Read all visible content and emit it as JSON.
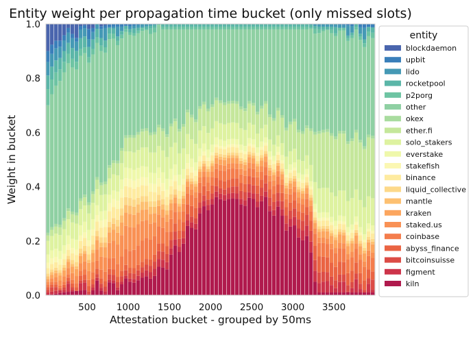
{
  "chart_data": {
    "type": "bar",
    "stacked": true,
    "normalized": true,
    "title": "Entity weight per propagation time bucket (only missed slots)",
    "xlabel": "Attestation bucket - grouped by 50ms",
    "ylabel": "Weight in bucket",
    "ylim": [
      0,
      1
    ],
    "y_ticks": [
      "0.0",
      "0.2",
      "0.4",
      "0.6",
      "0.8",
      "1.0"
    ],
    "x_ticks": [
      "500",
      "1000",
      "1500",
      "2000",
      "2500",
      "3000",
      "3500"
    ],
    "x_range": [
      0,
      4000
    ],
    "bucket_ms": 50,
    "grid": false,
    "legend": {
      "title": "entity",
      "position": "right",
      "entries": [
        {
          "name": "blockdaemon",
          "color": "#4a65ad"
        },
        {
          "name": "upbit",
          "color": "#3a7fba"
        },
        {
          "name": "lido",
          "color": "#4599b5"
        },
        {
          "name": "rocketpool",
          "color": "#5bb6a8"
        },
        {
          "name": "p2porg",
          "color": "#6ec4a3"
        },
        {
          "name": "other",
          "color": "#8fd0a3"
        },
        {
          "name": "okex",
          "color": "#a9dc9f"
        },
        {
          "name": "ether.fi",
          "color": "#c5e79b"
        },
        {
          "name": "solo_stakers",
          "color": "#def2a0"
        },
        {
          "name": "everstake",
          "color": "#eff8ab"
        },
        {
          "name": "stakefish",
          "color": "#fbf7b3"
        },
        {
          "name": "binance",
          "color": "#feeba0"
        },
        {
          "name": "liquid_collective",
          "color": "#fdd98a"
        },
        {
          "name": "mantle",
          "color": "#fdc071"
        },
        {
          "name": "kraken",
          "color": "#fca65f"
        },
        {
          "name": "staked.us",
          "color": "#f99155"
        },
        {
          "name": "coinbase",
          "color": "#f47d4c"
        },
        {
          "name": "abyss_finance",
          "color": "#ea6443"
        },
        {
          "name": "bitcoinsuisse",
          "color": "#dc4c46"
        },
        {
          "name": "figment",
          "color": "#cd344a"
        },
        {
          "name": "kiln",
          "color": "#b01a4d"
        }
      ]
    },
    "anchors": {
      "x": [
        25,
        200,
        500,
        800,
        1000,
        1200,
        1400,
        1600,
        1800,
        2000,
        2200,
        2400,
        2600,
        2800,
        3000,
        3200,
        3300,
        3500,
        3800,
        3975
      ],
      "cumulative_boundaries": {
        "kiln": [
          0.0,
          0.01,
          0.02,
          0.03,
          0.05,
          0.06,
          0.09,
          0.17,
          0.26,
          0.34,
          0.36,
          0.34,
          0.35,
          0.31,
          0.24,
          0.2,
          0.01,
          0.01,
          0.01,
          0.01
        ],
        "figment": [
          0.01,
          0.02,
          0.03,
          0.04,
          0.06,
          0.08,
          0.12,
          0.19,
          0.28,
          0.36,
          0.38,
          0.36,
          0.37,
          0.33,
          0.27,
          0.24,
          0.05,
          0.04,
          0.03,
          0.02
        ],
        "bitcoinsuisse": [
          0.02,
          0.03,
          0.04,
          0.06,
          0.08,
          0.1,
          0.15,
          0.22,
          0.3,
          0.38,
          0.4,
          0.39,
          0.4,
          0.36,
          0.3,
          0.28,
          0.09,
          0.07,
          0.05,
          0.04
        ],
        "abyss_finance": [
          0.03,
          0.04,
          0.06,
          0.08,
          0.1,
          0.12,
          0.18,
          0.25,
          0.34,
          0.41,
          0.43,
          0.42,
          0.43,
          0.39,
          0.33,
          0.31,
          0.15,
          0.12,
          0.09,
          0.07
        ],
        "coinbase": [
          0.04,
          0.05,
          0.08,
          0.12,
          0.16,
          0.2,
          0.24,
          0.29,
          0.38,
          0.44,
          0.47,
          0.45,
          0.46,
          0.42,
          0.36,
          0.34,
          0.2,
          0.17,
          0.14,
          0.12
        ],
        "staked.us": [
          0.05,
          0.07,
          0.11,
          0.18,
          0.25,
          0.27,
          0.28,
          0.32,
          0.4,
          0.46,
          0.49,
          0.47,
          0.48,
          0.44,
          0.38,
          0.36,
          0.22,
          0.19,
          0.16,
          0.14
        ],
        "kraken": [
          0.06,
          0.09,
          0.14,
          0.22,
          0.3,
          0.31,
          0.31,
          0.34,
          0.42,
          0.48,
          0.51,
          0.49,
          0.5,
          0.46,
          0.4,
          0.38,
          0.24,
          0.22,
          0.19,
          0.17
        ],
        "mantle": [
          0.07,
          0.1,
          0.15,
          0.24,
          0.33,
          0.34,
          0.33,
          0.35,
          0.43,
          0.49,
          0.52,
          0.5,
          0.51,
          0.47,
          0.41,
          0.39,
          0.25,
          0.23,
          0.2,
          0.18
        ],
        "liquid_collective": [
          0.08,
          0.11,
          0.17,
          0.26,
          0.36,
          0.36,
          0.35,
          0.37,
          0.44,
          0.5,
          0.53,
          0.51,
          0.52,
          0.48,
          0.42,
          0.4,
          0.26,
          0.24,
          0.21,
          0.19
        ],
        "binance": [
          0.1,
          0.13,
          0.2,
          0.3,
          0.4,
          0.4,
          0.38,
          0.4,
          0.46,
          0.52,
          0.55,
          0.53,
          0.54,
          0.5,
          0.44,
          0.42,
          0.28,
          0.26,
          0.23,
          0.21
        ],
        "stakefish": [
          0.12,
          0.15,
          0.22,
          0.33,
          0.43,
          0.43,
          0.41,
          0.42,
          0.48,
          0.53,
          0.56,
          0.54,
          0.55,
          0.51,
          0.45,
          0.43,
          0.29,
          0.27,
          0.24,
          0.22
        ],
        "everstake": [
          0.15,
          0.18,
          0.26,
          0.36,
          0.47,
          0.47,
          0.45,
          0.46,
          0.51,
          0.56,
          0.58,
          0.56,
          0.57,
          0.53,
          0.47,
          0.45,
          0.31,
          0.29,
          0.26,
          0.24
        ],
        "solo_stakers": [
          0.2,
          0.24,
          0.32,
          0.42,
          0.53,
          0.54,
          0.53,
          0.54,
          0.58,
          0.62,
          0.64,
          0.62,
          0.62,
          0.57,
          0.52,
          0.5,
          0.4,
          0.38,
          0.36,
          0.34
        ],
        "ether.fi": [
          0.22,
          0.27,
          0.35,
          0.46,
          0.58,
          0.6,
          0.6,
          0.62,
          0.66,
          0.7,
          0.71,
          0.69,
          0.69,
          0.66,
          0.62,
          0.6,
          0.6,
          0.59,
          0.57,
          0.56
        ],
        "okex": [
          0.23,
          0.28,
          0.36,
          0.47,
          0.59,
          0.61,
          0.61,
          0.63,
          0.67,
          0.71,
          0.72,
          0.7,
          0.7,
          0.67,
          0.63,
          0.61,
          0.61,
          0.6,
          0.58,
          0.57
        ],
        "other": [
          0.7,
          0.82,
          0.88,
          0.93,
          0.96,
          0.97,
          0.98,
          0.98,
          0.98,
          0.98,
          0.98,
          0.98,
          0.98,
          0.98,
          0.98,
          0.98,
          0.97,
          0.97,
          0.95,
          0.93
        ],
        "p2porg": [
          0.76,
          0.86,
          0.9,
          0.95,
          0.97,
          0.98,
          0.99,
          0.99,
          0.99,
          0.99,
          0.99,
          0.99,
          0.99,
          0.99,
          0.99,
          0.99,
          0.98,
          0.98,
          0.96,
          0.95
        ],
        "rocketpool": [
          0.81,
          0.9,
          0.94,
          0.97,
          0.98,
          0.99,
          1.0,
          1.0,
          1.0,
          1.0,
          1.0,
          1.0,
          1.0,
          1.0,
          1.0,
          1.0,
          0.99,
          0.99,
          0.97,
          0.97
        ],
        "lido": [
          0.86,
          0.94,
          0.97,
          0.99,
          0.99,
          1.0,
          1.0,
          1.0,
          1.0,
          1.0,
          1.0,
          1.0,
          1.0,
          1.0,
          1.0,
          1.0,
          1.0,
          1.0,
          0.99,
          0.98
        ],
        "upbit": [
          0.9,
          0.96,
          0.98,
          1.0,
          1.0,
          1.0,
          1.0,
          1.0,
          1.0,
          1.0,
          1.0,
          1.0,
          1.0,
          1.0,
          1.0,
          1.0,
          1.0,
          1.0,
          1.0,
          1.0
        ],
        "blockdaemon": [
          1.0,
          1.0,
          1.0,
          1.0,
          1.0,
          1.0,
          1.0,
          1.0,
          1.0,
          1.0,
          1.0,
          1.0,
          1.0,
          1.0,
          1.0,
          1.0,
          1.0,
          1.0,
          1.0,
          1.0
        ]
      }
    }
  }
}
